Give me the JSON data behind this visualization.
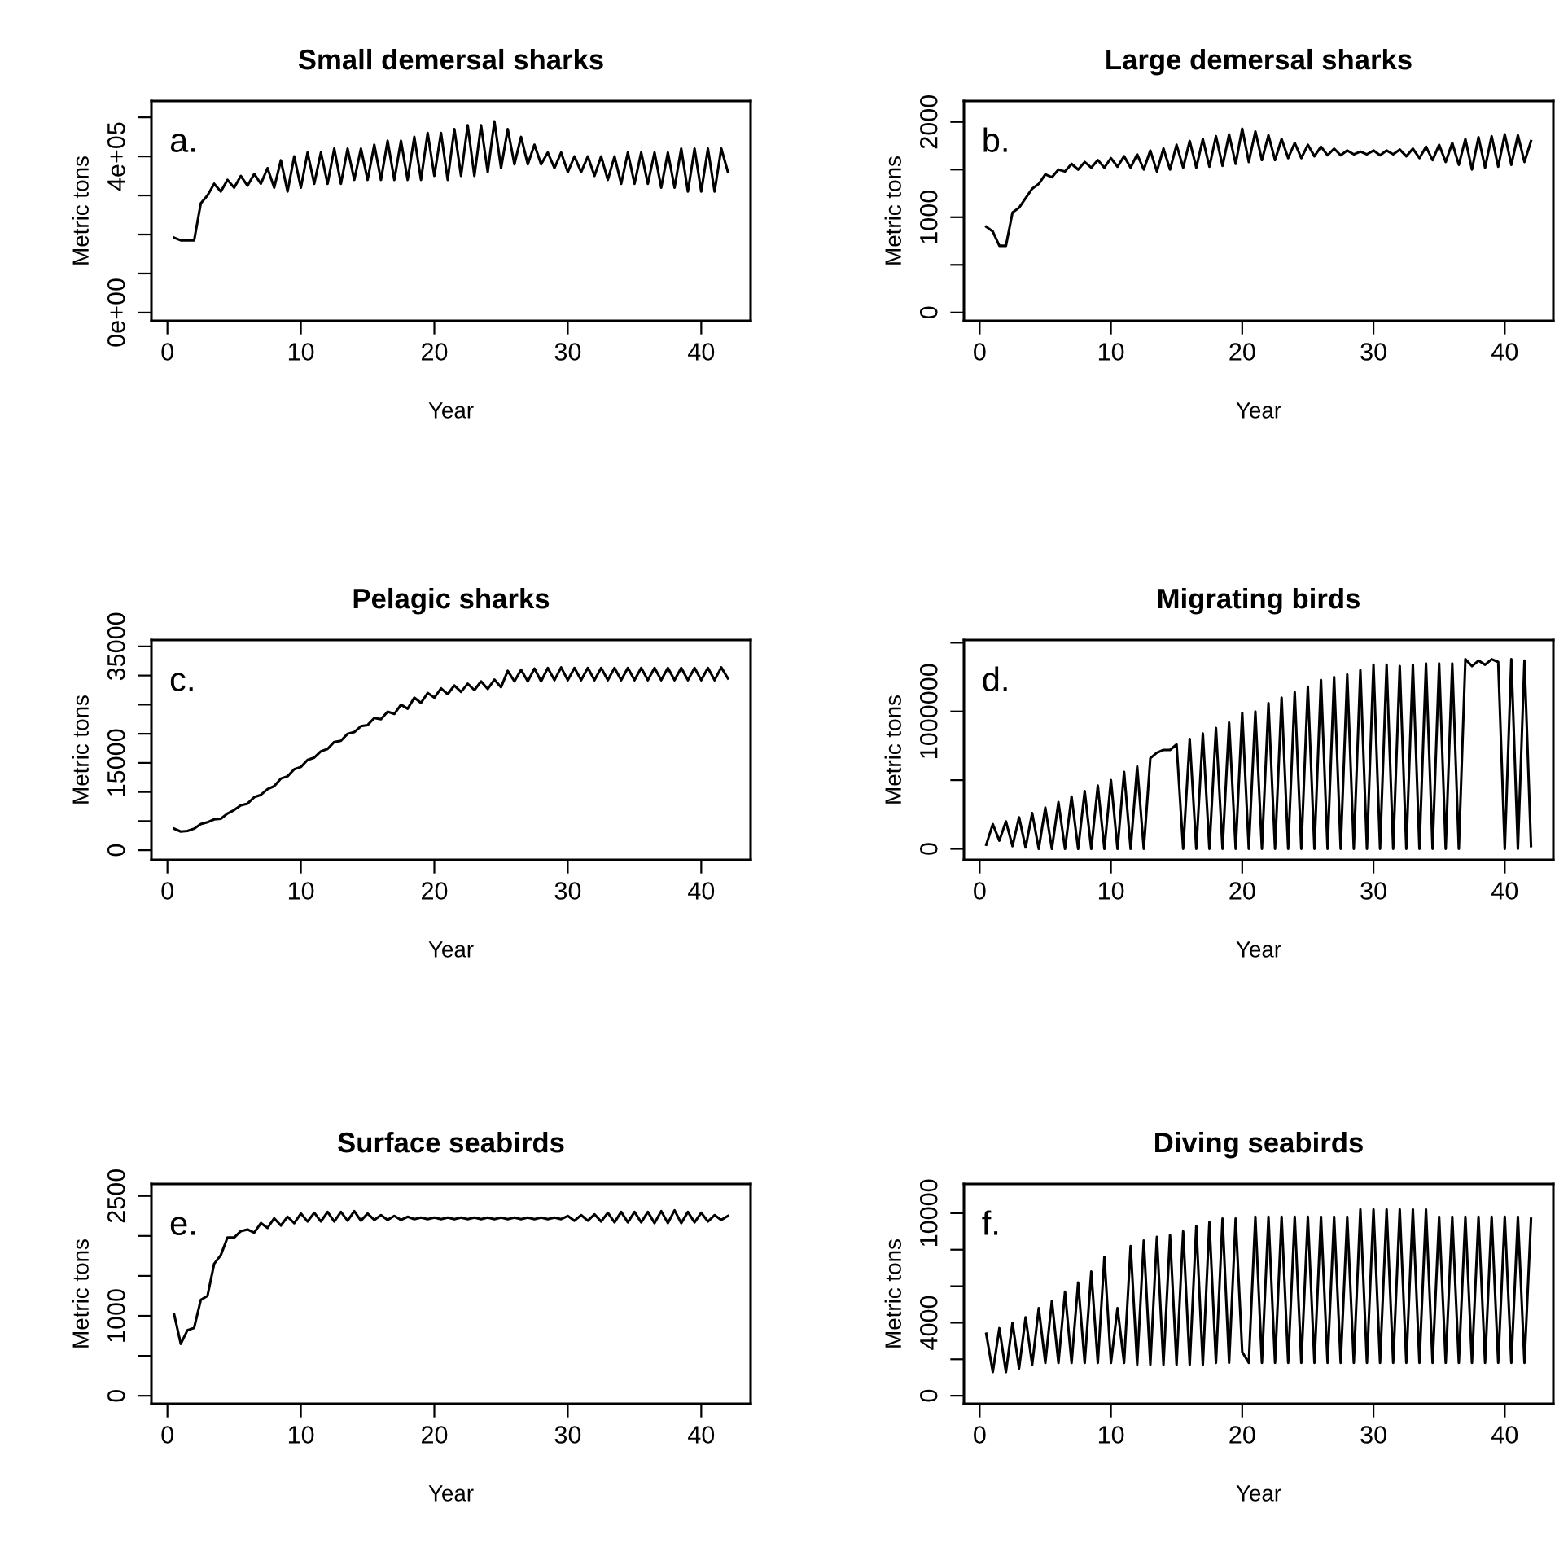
{
  "chart_data": [
    {
      "type": "line",
      "title": "Small demersal sharks",
      "xlabel": "Year",
      "ylabel": "Metric tons",
      "annotations": [
        "a."
      ],
      "xlim": [
        -1.2,
        43.7
      ],
      "ylim": [
        -21000,
        542000
      ],
      "xticks": [
        0,
        10,
        20,
        30,
        40
      ],
      "yticks": [
        {
          "value": 0,
          "label": "0e+00"
        },
        {
          "value": 100000,
          "label": null
        },
        {
          "value": 200000,
          "label": null
        },
        {
          "value": 300000,
          "label": null
        },
        {
          "value": 400000,
          "label": "4e+05"
        },
        {
          "value": 500000,
          "label": null
        }
      ],
      "x": [
        0.5,
        1,
        1.5,
        2,
        2.5,
        3,
        3.5,
        4,
        4.5,
        5,
        5.5,
        6,
        6.5,
        7,
        7.5,
        8,
        8.5,
        9,
        9.5,
        10,
        10.5,
        11,
        11.5,
        12,
        12.5,
        13,
        13.5,
        14,
        14.5,
        15,
        15.5,
        16,
        16.5,
        17,
        17.5,
        18,
        18.5,
        19,
        19.5,
        20,
        20.5,
        21,
        21.5,
        22,
        22.5,
        23,
        23.5,
        24,
        24.5,
        25,
        25.5,
        26,
        26.5,
        27,
        27.5,
        28,
        28.5,
        29,
        29.5,
        30,
        30.5,
        31,
        31.5,
        32,
        32.5,
        33,
        33.5,
        34,
        34.5,
        35,
        35.5,
        36,
        36.5,
        37,
        37.5,
        38,
        38.5,
        39,
        39.5,
        40,
        40.5,
        41,
        41.5,
        42
      ],
      "series": [
        {
          "color": "#000000",
          "values": [
            192000,
            185000,
            185000,
            185000,
            280000,
            300000,
            330000,
            310000,
            340000,
            320000,
            350000,
            325000,
            355000,
            330000,
            370000,
            320000,
            390000,
            310000,
            400000,
            320000,
            410000,
            330000,
            410000,
            330000,
            420000,
            330000,
            420000,
            340000,
            420000,
            340000,
            430000,
            340000,
            440000,
            340000,
            440000,
            340000,
            450000,
            340000,
            460000,
            350000,
            460000,
            340000,
            470000,
            350000,
            480000,
            350000,
            480000,
            360000,
            490000,
            370000,
            470000,
            380000,
            450000,
            380000,
            430000,
            380000,
            410000,
            370000,
            410000,
            360000,
            400000,
            360000,
            400000,
            350000,
            400000,
            340000,
            400000,
            330000,
            410000,
            330000,
            410000,
            330000,
            410000,
            320000,
            410000,
            320000,
            420000,
            310000,
            420000,
            310000,
            420000,
            310000,
            420000,
            360000
          ]
        }
      ]
    },
    {
      "type": "line",
      "title": "Large demersal sharks",
      "xlabel": "Year",
      "ylabel": "Metric tons",
      "annotations": [
        "b."
      ],
      "xlim": [
        -1.2,
        43.7
      ],
      "ylim": [
        -87,
        2220
      ],
      "xticks": [
        0,
        10,
        20,
        30,
        40
      ],
      "yticks": [
        0,
        {
          "value": 500,
          "label": null
        },
        1000,
        {
          "value": 1500,
          "label": null
        },
        2000
      ],
      "x": [
        0.5,
        1,
        1.5,
        2,
        2.5,
        3,
        3.5,
        4,
        4.5,
        5,
        5.5,
        6,
        6.5,
        7,
        7.5,
        8,
        8.5,
        9,
        9.5,
        10,
        10.5,
        11,
        11.5,
        12,
        12.5,
        13,
        13.5,
        14,
        14.5,
        15,
        15.5,
        16,
        16.5,
        17,
        17.5,
        18,
        18.5,
        19,
        19.5,
        20,
        20.5,
        21,
        21.5,
        22,
        22.5,
        23,
        23.5,
        24,
        24.5,
        25,
        25.5,
        26,
        26.5,
        27,
        27.5,
        28,
        28.5,
        29,
        29.5,
        30,
        30.5,
        31,
        31.5,
        32,
        32.5,
        33,
        33.5,
        34,
        34.5,
        35,
        35.5,
        36,
        36.5,
        37,
        37.5,
        38,
        38.5,
        39,
        39.5,
        40,
        40.5,
        41,
        41.5,
        42
      ],
      "series": [
        {
          "color": "#000000",
          "values": [
            900,
            850,
            700,
            700,
            1050,
            1100,
            1200,
            1300,
            1350,
            1450,
            1420,
            1500,
            1480,
            1560,
            1500,
            1580,
            1520,
            1600,
            1520,
            1620,
            1530,
            1640,
            1520,
            1660,
            1500,
            1700,
            1480,
            1720,
            1500,
            1760,
            1520,
            1800,
            1520,
            1820,
            1530,
            1850,
            1540,
            1870,
            1560,
            1930,
            1580,
            1900,
            1600,
            1860,
            1600,
            1820,
            1620,
            1780,
            1620,
            1760,
            1640,
            1740,
            1650,
            1720,
            1650,
            1700,
            1660,
            1690,
            1660,
            1700,
            1650,
            1700,
            1660,
            1710,
            1640,
            1720,
            1620,
            1740,
            1600,
            1760,
            1580,
            1780,
            1550,
            1820,
            1500,
            1840,
            1520,
            1850,
            1530,
            1870,
            1550,
            1860,
            1580,
            1800
          ]
        }
      ]
    },
    {
      "type": "line",
      "title": "Pelagic sharks",
      "xlabel": "Year",
      "ylabel": "Metric tons",
      "annotations": [
        "c."
      ],
      "xlim": [
        -1.2,
        43.7
      ],
      "ylim": [
        -1660,
        36100
      ],
      "xticks": [
        0,
        10,
        20,
        30,
        40
      ],
      "yticks": [
        0,
        {
          "value": 5000,
          "label": null
        },
        {
          "value": 10000,
          "label": null
        },
        15000,
        {
          "value": 20000,
          "label": null
        },
        {
          "value": 25000,
          "label": null
        },
        {
          "value": 30000,
          "label": null
        },
        35000
      ],
      "x": [
        0.5,
        1,
        1.5,
        2,
        2.5,
        3,
        3.5,
        4,
        4.5,
        5,
        5.5,
        6,
        6.5,
        7,
        7.5,
        8,
        8.5,
        9,
        9.5,
        10,
        10.5,
        11,
        11.5,
        12,
        12.5,
        13,
        13.5,
        14,
        14.5,
        15,
        15.5,
        16,
        16.5,
        17,
        17.5,
        18,
        18.5,
        19,
        19.5,
        20,
        20.5,
        21,
        21.5,
        22,
        22.5,
        23,
        23.5,
        24,
        24.5,
        25,
        25.5,
        26,
        26.5,
        27,
        27.5,
        28,
        28.5,
        29,
        29.5,
        30,
        30.5,
        31,
        31.5,
        32,
        32.5,
        33,
        33.5,
        34,
        34.5,
        35,
        35.5,
        36,
        36.5,
        37,
        37.5,
        38,
        38.5,
        39,
        39.5,
        40,
        40.5,
        41,
        41.5,
        42
      ],
      "series": [
        {
          "color": "#000000",
          "values": [
            3700,
            3200,
            3300,
            3700,
            4500,
            4800,
            5300,
            5400,
            6300,
            6900,
            7700,
            8000,
            9100,
            9500,
            10500,
            11000,
            12300,
            12700,
            13900,
            14300,
            15500,
            15900,
            17000,
            17400,
            18600,
            18800,
            20000,
            20300,
            21300,
            21500,
            22700,
            22500,
            23800,
            23400,
            25000,
            24300,
            26200,
            25300,
            27000,
            26200,
            27800,
            26800,
            28300,
            27200,
            28600,
            27500,
            29000,
            27700,
            29300,
            28000,
            30800,
            29000,
            31000,
            29000,
            31200,
            29000,
            31300,
            29200,
            31400,
            29200,
            31300,
            29200,
            31300,
            29200,
            31300,
            29200,
            31300,
            29200,
            31300,
            29200,
            31300,
            29200,
            31300,
            29200,
            31300,
            29200,
            31300,
            29200,
            31300,
            29200,
            31300,
            29200,
            31400,
            29500
          ]
        }
      ]
    },
    {
      "type": "line",
      "title": "Migrating birds",
      "xlabel": "Year",
      "ylabel": "Metric tons",
      "annotations": [
        "d."
      ],
      "xlim": [
        -1.2,
        43.7
      ],
      "ylim": [
        -80000,
        1520000
      ],
      "xticks": [
        0,
        10,
        20,
        30,
        40
      ],
      "yticks": [
        0,
        {
          "value": 500000,
          "label": null
        },
        1000000,
        {
          "value": 1500000,
          "label": null
        }
      ],
      "x": [
        0.5,
        1,
        1.5,
        2,
        2.5,
        3,
        3.5,
        4,
        4.5,
        5,
        5.5,
        6,
        6.5,
        7,
        7.5,
        8,
        8.5,
        9,
        9.5,
        10,
        10.5,
        11,
        11.5,
        12,
        12.5,
        13,
        13.5,
        14,
        14.5,
        15,
        15.5,
        16,
        16.5,
        17,
        17.5,
        18,
        18.5,
        19,
        19.5,
        20,
        20.5,
        21,
        21.5,
        22,
        22.5,
        23,
        23.5,
        24,
        24.5,
        25,
        25.5,
        26,
        26.5,
        27,
        27.5,
        28,
        28.5,
        29,
        29.5,
        30,
        30.5,
        31,
        31.5,
        32,
        32.5,
        33,
        33.5,
        34,
        34.5,
        35,
        35.5,
        36,
        36.5,
        37,
        37.5,
        38,
        38.5,
        39,
        39.5,
        40,
        40.5,
        41,
        41.5,
        42
      ],
      "series": [
        {
          "color": "#000000",
          "values": [
            30000,
            180000,
            60000,
            200000,
            20000,
            230000,
            10000,
            260000,
            0,
            300000,
            0,
            340000,
            0,
            380000,
            0,
            420000,
            0,
            460000,
            0,
            500000,
            0,
            560000,
            0,
            600000,
            0,
            660000,
            700000,
            720000,
            720000,
            760000,
            0,
            800000,
            0,
            840000,
            0,
            880000,
            0,
            920000,
            0,
            990000,
            0,
            1000000,
            0,
            1060000,
            0,
            1100000,
            0,
            1140000,
            0,
            1180000,
            0,
            1230000,
            0,
            1250000,
            0,
            1270000,
            0,
            1300000,
            0,
            1340000,
            0,
            1340000,
            0,
            1330000,
            0,
            1340000,
            0,
            1350000,
            0,
            1350000,
            0,
            1350000,
            0,
            1380000,
            1330000,
            1370000,
            1340000,
            1380000,
            1360000,
            0,
            1380000,
            0,
            1370000,
            20000
          ]
        }
      ]
    },
    {
      "type": "line",
      "title": "Surface seabirds",
      "xlabel": "Year",
      "ylabel": "Metric tons",
      "annotations": [
        "e."
      ],
      "xlim": [
        -1.2,
        43.7
      ],
      "ylim": [
        -100,
        2650
      ],
      "xticks": [
        0,
        10,
        20,
        30,
        40
      ],
      "yticks": [
        0,
        {
          "value": 500,
          "label": null
        },
        1000,
        {
          "value": 1500,
          "label": null
        },
        {
          "value": 2000,
          "label": null
        },
        2500
      ],
      "x": [
        0.5,
        1,
        1.5,
        2,
        2.5,
        3,
        3.5,
        4,
        4.5,
        5,
        5.5,
        6,
        6.5,
        7,
        7.5,
        8,
        8.5,
        9,
        9.5,
        10,
        10.5,
        11,
        11.5,
        12,
        12.5,
        13,
        13.5,
        14,
        14.5,
        15,
        15.5,
        16,
        16.5,
        17,
        17.5,
        18,
        18.5,
        19,
        19.5,
        20,
        20.5,
        21,
        21.5,
        22,
        22.5,
        23,
        23.5,
        24,
        24.5,
        25,
        25.5,
        26,
        26.5,
        27,
        27.5,
        28,
        28.5,
        29,
        29.5,
        30,
        30.5,
        31,
        31.5,
        32,
        32.5,
        33,
        33.5,
        34,
        34.5,
        35,
        35.5,
        36,
        36.5,
        37,
        37.5,
        38,
        38.5,
        39,
        39.5,
        40,
        40.5,
        41,
        41.5,
        42
      ],
      "series": [
        {
          "color": "#000000",
          "values": [
            1020,
            650,
            820,
            850,
            1200,
            1250,
            1650,
            1760,
            1980,
            1980,
            2060,
            2080,
            2040,
            2160,
            2100,
            2220,
            2130,
            2240,
            2160,
            2280,
            2180,
            2290,
            2180,
            2300,
            2180,
            2300,
            2190,
            2310,
            2190,
            2280,
            2200,
            2260,
            2200,
            2250,
            2200,
            2240,
            2210,
            2230,
            2210,
            2230,
            2210,
            2230,
            2210,
            2230,
            2210,
            2230,
            2210,
            2230,
            2210,
            2230,
            2210,
            2230,
            2210,
            2230,
            2210,
            2230,
            2210,
            2230,
            2210,
            2250,
            2190,
            2260,
            2190,
            2270,
            2180,
            2290,
            2170,
            2300,
            2170,
            2300,
            2170,
            2300,
            2160,
            2310,
            2160,
            2320,
            2160,
            2300,
            2170,
            2290,
            2180,
            2260,
            2200,
            2250
          ]
        }
      ]
    },
    {
      "type": "line",
      "title": "Diving seabirds",
      "xlabel": "Year",
      "ylabel": "Metric tons",
      "annotations": [
        "f."
      ],
      "xlim": [
        -1.2,
        43.7
      ],
      "ylim": [
        -440,
        11600
      ],
      "xticks": [
        0,
        10,
        20,
        30,
        40
      ],
      "yticks": [
        0,
        {
          "value": 2000,
          "label": null
        },
        4000,
        {
          "value": 6000,
          "label": null
        },
        {
          "value": 8000,
          "label": null
        },
        10000
      ],
      "x": [
        0.5,
        1,
        1.5,
        2,
        2.5,
        3,
        3.5,
        4,
        4.5,
        5,
        5.5,
        6,
        6.5,
        7,
        7.5,
        8,
        8.5,
        9,
        9.5,
        10,
        10.5,
        11,
        11.5,
        12,
        12.5,
        13,
        13.5,
        14,
        14.5,
        15,
        15.5,
        16,
        16.5,
        17,
        17.5,
        18,
        18.5,
        19,
        19.5,
        20,
        20.5,
        21,
        21.5,
        22,
        22.5,
        23,
        23.5,
        24,
        24.5,
        25,
        25.5,
        26,
        26.5,
        27,
        27.5,
        28,
        28.5,
        29,
        29.5,
        30,
        30.5,
        31,
        31.5,
        32,
        32.5,
        33,
        33.5,
        34,
        34.5,
        35,
        35.5,
        36,
        36.5,
        37,
        37.5,
        38,
        38.5,
        39,
        39.5,
        40,
        40.5,
        41,
        41.5,
        42
      ],
      "series": [
        {
          "color": "#000000",
          "values": [
            3400,
            1300,
            3700,
            1300,
            4000,
            1500,
            4300,
            1700,
            4800,
            1800,
            5200,
            1800,
            5700,
            1800,
            6200,
            1800,
            6800,
            1800,
            7600,
            1800,
            4800,
            1800,
            8200,
            1700,
            8500,
            1700,
            8700,
            1700,
            8800,
            1700,
            9000,
            1700,
            9300,
            1700,
            9500,
            1800,
            9700,
            1800,
            9700,
            2400,
            1800,
            9800,
            1800,
            9800,
            1800,
            9800,
            1800,
            9800,
            1800,
            9800,
            1800,
            9800,
            1800,
            9800,
            1800,
            9800,
            1800,
            10200,
            1800,
            10200,
            1800,
            10200,
            1800,
            10200,
            1800,
            10200,
            1800,
            10200,
            1800,
            9800,
            1800,
            9800,
            1800,
            9800,
            1800,
            9800,
            1800,
            9800,
            1800,
            9800,
            1800,
            9800,
            1800,
            9700
          ]
        }
      ]
    }
  ]
}
